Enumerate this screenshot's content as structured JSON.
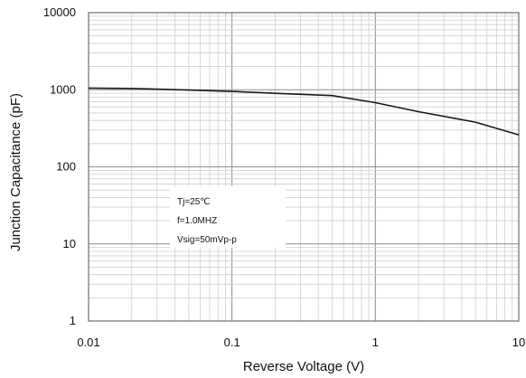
{
  "chart_data": {
    "type": "line",
    "title": "",
    "xlabel": "Reverse Voltage (V)",
    "ylabel": "Junction Capacitance (pF)",
    "x_scale": "log",
    "y_scale": "log",
    "xlim": [
      0.01,
      10
    ],
    "ylim": [
      1,
      10000
    ],
    "grid": true,
    "x_ticks": [
      "0.01",
      "0.1",
      "1",
      "10"
    ],
    "y_ticks": [
      "1",
      "10",
      "100",
      "1000",
      "10000"
    ],
    "series": [
      {
        "x": [
          0.01,
          0.02,
          0.05,
          0.1,
          0.2,
          0.5,
          1,
          2,
          5,
          10
        ],
        "y": [
          1050,
          1040,
          990,
          950,
          900,
          840,
          680,
          520,
          380,
          260
        ]
      }
    ],
    "annotation_lines": [
      "Tj=25℃",
      "f=1.0MHZ",
      "Vsig=50mVp-p"
    ],
    "colors": {
      "curve": "#1a1a1a",
      "major_grid": "#8c8c8c",
      "minor_grid": "#cfcfcf",
      "frame": "#6e6e6e"
    }
  }
}
